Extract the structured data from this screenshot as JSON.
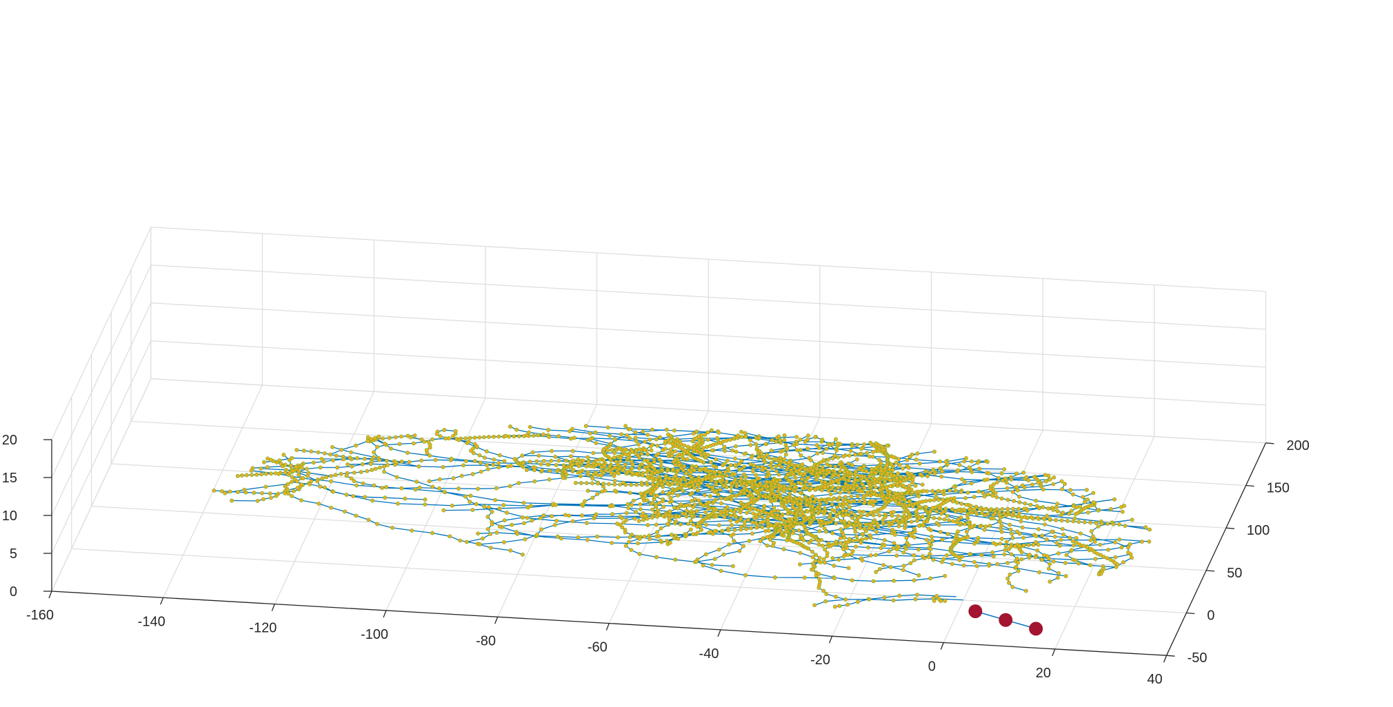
{
  "chart_data": {
    "type": "scatter",
    "title": "",
    "xlabel": "",
    "ylabel": "",
    "zlabel": "",
    "grid": true,
    "xlim": [
      -160,
      40
    ],
    "ylim": [
      -50,
      200
    ],
    "zlim": [
      0,
      20
    ],
    "x_ticks": [
      "-160",
      "-140",
      "-120",
      "-100",
      "-80",
      "-60",
      "-40",
      "-20",
      "0",
      "20",
      "40"
    ],
    "y_ticks": [
      "-50",
      "0",
      "50",
      "100",
      "150",
      "200"
    ],
    "z_ticks": [
      "0",
      "5",
      "10",
      "15",
      "20"
    ],
    "colors": {
      "edge": "#0072BD",
      "node": "#EDB120",
      "node_outline": "#77AC30",
      "root": "#A2142F",
      "grid": "#dcdcdc",
      "axis": "#262626"
    },
    "series": [
      {
        "type": "network",
        "nodes_estimated": 3200,
        "x_range": [
          -140,
          28
        ],
        "y_range": [
          -25,
          180
        ],
        "z": 0
      },
      {
        "type": "root_markers",
        "x": [
          3,
          9,
          15
        ],
        "y": [
          -12,
          -20,
          -28
        ],
        "z": [
          0,
          0,
          0
        ]
      }
    ]
  }
}
